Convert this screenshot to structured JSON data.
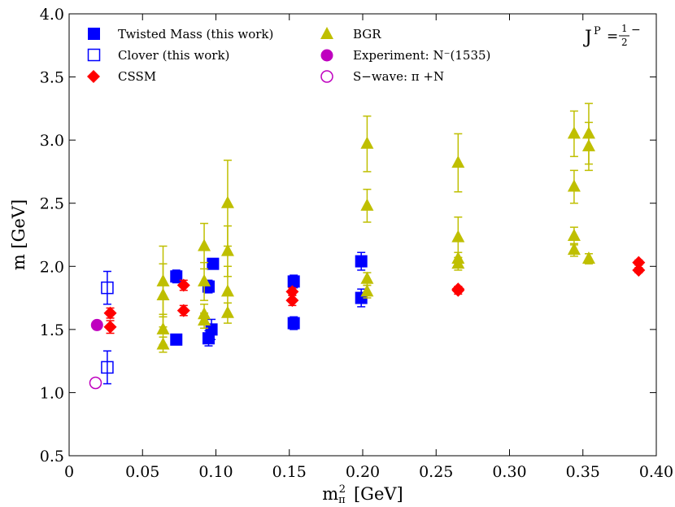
{
  "chart_data": {
    "type": "scatter",
    "xlabel": "m",
    "xlabel_sub": "π",
    "xlabel_sup": "2",
    "xlabel_unit": "[GeV]",
    "ylabel": "m [GeV]",
    "xlim": [
      0,
      0.4
    ],
    "ylim": [
      0.5,
      4.0
    ],
    "xticks": [
      0,
      0.05,
      0.1,
      0.15,
      0.2,
      0.25,
      0.3,
      0.35,
      0.4
    ],
    "xtick_labels": [
      "0",
      "0.05",
      "0.10",
      "0.15",
      "0.20",
      "0.25",
      "0.30",
      "0.35",
      "0.40"
    ],
    "yticks": [
      0.5,
      1.0,
      1.5,
      2.0,
      2.5,
      3.0,
      3.5,
      4.0
    ],
    "ytick_labels": [
      "0.5",
      "1.0",
      "1.5",
      "2.0",
      "2.5",
      "3.0",
      "3.5",
      "4.0"
    ],
    "annotation": {
      "J": "J",
      "P": "P",
      "eq": "=",
      "num": "1",
      "den": "2",
      "sign": "−"
    },
    "legend_position": "top",
    "series": [
      {
        "name": "Twisted Mass (this work)",
        "marker": "square-filled",
        "color": "#0000ff",
        "points": [
          {
            "x": 0.073,
            "y": 1.42,
            "err": 0.03
          },
          {
            "x": 0.073,
            "y": 1.92,
            "err": 0.05
          },
          {
            "x": 0.095,
            "y": 1.43,
            "err": 0.06
          },
          {
            "x": 0.097,
            "y": 1.5,
            "err": 0.08
          },
          {
            "x": 0.095,
            "y": 1.84,
            "err": 0.05
          },
          {
            "x": 0.098,
            "y": 2.02,
            "err": 0.04
          },
          {
            "x": 0.153,
            "y": 1.55,
            "err": 0.05
          },
          {
            "x": 0.153,
            "y": 1.88,
            "err": 0.05
          },
          {
            "x": 0.199,
            "y": 1.75,
            "err": 0.07
          },
          {
            "x": 0.199,
            "y": 2.04,
            "err": 0.07
          }
        ]
      },
      {
        "name": "Clover (this work)",
        "marker": "square-open",
        "color": "#0000ff",
        "points": [
          {
            "x": 0.026,
            "y": 1.2,
            "err": 0.13
          },
          {
            "x": 0.026,
            "y": 1.83,
            "err": 0.13
          }
        ]
      },
      {
        "name": "CSSM",
        "marker": "diamond-filled",
        "color": "#ff0000",
        "points": [
          {
            "x": 0.028,
            "y": 1.52,
            "err": 0.05
          },
          {
            "x": 0.028,
            "y": 1.63,
            "err": 0.04
          },
          {
            "x": 0.078,
            "y": 1.65,
            "err": 0.04
          },
          {
            "x": 0.078,
            "y": 1.85,
            "err": 0.04
          },
          {
            "x": 0.152,
            "y": 1.73,
            "err": 0.04
          },
          {
            "x": 0.152,
            "y": 1.8,
            "err": 0.03
          },
          {
            "x": 0.265,
            "y": 1.81,
            "err": 0.03
          },
          {
            "x": 0.265,
            "y": 1.82,
            "err": 0.02
          },
          {
            "x": 0.388,
            "y": 1.97,
            "err": 0.02
          },
          {
            "x": 0.388,
            "y": 2.03,
            "err": 0.02
          }
        ]
      },
      {
        "name": "BGR",
        "marker": "triangle-filled",
        "color": "#bfbf00",
        "points": [
          {
            "x": 0.064,
            "y": 1.38,
            "err": 0.06
          },
          {
            "x": 0.064,
            "y": 1.5,
            "err": 0.12
          },
          {
            "x": 0.064,
            "y": 1.77,
            "err": 0.25
          },
          {
            "x": 0.064,
            "y": 1.88,
            "err": 0.28
          },
          {
            "x": 0.092,
            "y": 1.57,
            "err": 0.06
          },
          {
            "x": 0.092,
            "y": 1.62,
            "err": 0.08
          },
          {
            "x": 0.092,
            "y": 1.88,
            "err": 0.15
          },
          {
            "x": 0.092,
            "y": 2.16,
            "err": 0.18
          },
          {
            "x": 0.108,
            "y": 1.63,
            "err": 0.08
          },
          {
            "x": 0.108,
            "y": 1.8,
            "err": 0.2
          },
          {
            "x": 0.108,
            "y": 2.12,
            "err": 0.2
          },
          {
            "x": 0.108,
            "y": 2.5,
            "err": 0.34
          },
          {
            "x": 0.203,
            "y": 1.8,
            "err": 0.05
          },
          {
            "x": 0.203,
            "y": 1.9,
            "err": 0.05
          },
          {
            "x": 0.203,
            "y": 2.48,
            "err": 0.13
          },
          {
            "x": 0.203,
            "y": 2.97,
            "err": 0.22
          },
          {
            "x": 0.265,
            "y": 2.02,
            "err": 0.05
          },
          {
            "x": 0.265,
            "y": 2.06,
            "err": 0.05
          },
          {
            "x": 0.265,
            "y": 2.23,
            "err": 0.16
          },
          {
            "x": 0.265,
            "y": 2.82,
            "err": 0.23
          },
          {
            "x": 0.344,
            "y": 2.13,
            "err": 0.05
          },
          {
            "x": 0.344,
            "y": 2.24,
            "err": 0.07
          },
          {
            "x": 0.344,
            "y": 2.63,
            "err": 0.13
          },
          {
            "x": 0.344,
            "y": 3.05,
            "err": 0.18
          },
          {
            "x": 0.354,
            "y": 2.06,
            "err": 0.04
          },
          {
            "x": 0.354,
            "y": 2.95,
            "err": 0.19
          },
          {
            "x": 0.354,
            "y": 3.05,
            "err": 0.24
          }
        ]
      },
      {
        "name": "Experiment: N⁻(1535)",
        "marker": "circle-filled",
        "color": "#bf00bf",
        "points": [
          {
            "x": 0.019,
            "y": 1.535,
            "err": 0
          }
        ]
      },
      {
        "name": "S−wave: π +N",
        "marker": "circle-open",
        "color": "#bf00bf",
        "points": [
          {
            "x": 0.018,
            "y": 1.077,
            "err": 0
          }
        ]
      }
    ]
  }
}
